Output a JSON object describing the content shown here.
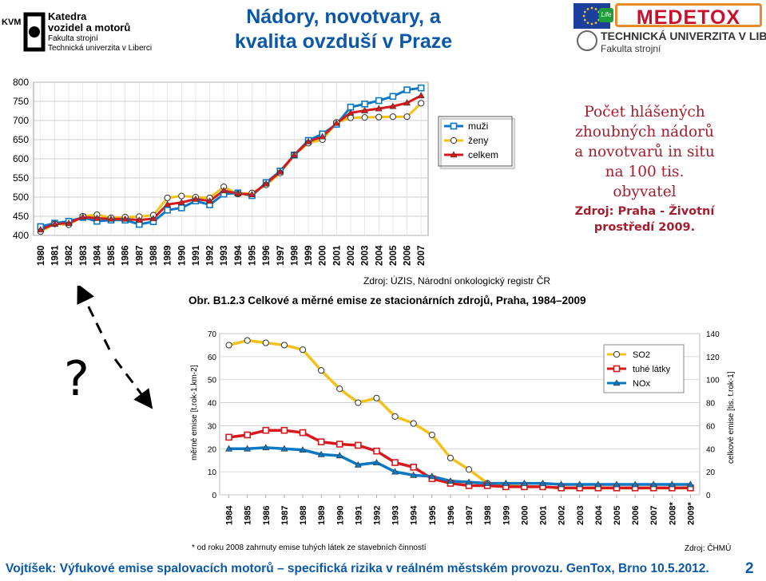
{
  "header": {
    "logo_left": {
      "abbr": "KVM",
      "line1": "Katedra",
      "line2": "vozidel a motorů",
      "line3": "Fakulta strojní",
      "line4": "Technická univerzita v Liberci"
    },
    "title_line1": "Nádory, novotvary, a",
    "title_line2": "kvalita ovzduší v Praze",
    "logo_right": {
      "brand": "MEDETOX",
      "life": "Life",
      "uni": "TECHNICKÁ UNIVERZITA V LIBERCI",
      "faculty": "Fakulta strojní"
    }
  },
  "chart1_caption": {
    "line1": "Počet hlášených",
    "line2": "zhoubných nádorů",
    "line3": "a novotvarů in situ",
    "line4": "na 100 tis.",
    "line5": "obyvatel",
    "source_line1": "Zdroj: Praha - Životní",
    "source_line2": "prostředí 2009.",
    "source_bottom": "Zdroj: ÚZIS, Národní onkologický registr ČR"
  },
  "chart2_caption": {
    "title": "Obr. B1.2.3  Celkové a měrné emise ze stacionárních zdrojů, Praha, 1984–2009",
    "footnote": "* od roku 2008 zahrnuty emise tuhých látek ze stavebních činností",
    "source": "Zdroj: ČHMÚ"
  },
  "question_mark": "?",
  "footer": {
    "text": "Vojtíšek: Výfukové emise spalovacích motorů – specifická rizika v reálném městském provozu. GenTox, Brno 10.5.2012.",
    "page": "2"
  },
  "colors": {
    "blue": "#0a78c2",
    "yellow": "#f3c11a",
    "red": "#d7191c",
    "title_blue": "#0b57a8",
    "caption_red": "#a51d2d"
  },
  "chart_data": [
    {
      "type": "line",
      "categories": [
        "1980",
        "1981",
        "1982",
        "1983",
        "1984",
        "1985",
        "1986",
        "1987",
        "1988",
        "1989",
        "1990",
        "1991",
        "1992",
        "1993",
        "1994",
        "1995",
        "1996",
        "1997",
        "1998",
        "1999",
        "2000",
        "2001",
        "2002",
        "2003",
        "2004",
        "2005",
        "2006",
        "2007"
      ],
      "ylim": [
        400,
        800
      ],
      "yticks": [
        400,
        450,
        500,
        550,
        600,
        650,
        700,
        750,
        800
      ],
      "series": [
        {
          "name": "muži",
          "color": "#0a78c2",
          "marker": "square",
          "values": [
            423,
            432,
            437,
            447,
            437,
            440,
            440,
            429,
            436,
            466,
            472,
            490,
            480,
            508,
            511,
            504,
            538,
            568,
            610,
            648,
            665,
            690,
            735,
            743,
            752,
            763,
            780,
            785
          ]
        },
        {
          "name": "ženy",
          "color": "#f3c11a",
          "marker": "circle",
          "values": [
            410,
            430,
            428,
            450,
            454,
            446,
            448,
            449,
            453,
            498,
            503,
            500,
            498,
            527,
            508,
            511,
            532,
            563,
            610,
            641,
            650,
            695,
            707,
            708,
            709,
            710,
            710,
            745
          ]
        },
        {
          "name": "celkem",
          "color": "#d7191c",
          "marker": "triangle",
          "values": [
            415,
            430,
            432,
            448,
            445,
            443,
            443,
            440,
            444,
            481,
            486,
            495,
            490,
            517,
            509,
            507,
            535,
            566,
            610,
            645,
            658,
            693,
            720,
            726,
            731,
            737,
            746,
            765
          ]
        }
      ]
    },
    {
      "type": "line",
      "title": "Obr. B1.2.3  Celkové a měrné emise ze stacionárních zdrojů, Praha, 1984–2009",
      "ylabel": "měrné emise [t.rok-1.km-2]",
      "y2label": "celkové emise [tis. t.rok-1]",
      "categories": [
        "1984",
        "1985",
        "1986",
        "1987",
        "1988",
        "1989",
        "1990",
        "1991",
        "1992",
        "1993",
        "1994",
        "1995",
        "1996",
        "1997",
        "1998",
        "1999",
        "2000",
        "2001",
        "2002",
        "2003",
        "2004",
        "2005",
        "2006",
        "2007",
        "2008*",
        "2009*"
      ],
      "ylim": [
        0,
        70
      ],
      "yticks": [
        0,
        10,
        20,
        30,
        40,
        50,
        60,
        70
      ],
      "y2lim": [
        0,
        140
      ],
      "y2ticks": [
        0,
        20,
        40,
        60,
        80,
        100,
        120,
        140
      ],
      "series": [
        {
          "name": "SO2",
          "color": "#f3c11a",
          "marker": "circle",
          "values": [
            65,
            67,
            66,
            65,
            63,
            54,
            46,
            40,
            42,
            34,
            31,
            26,
            16,
            11,
            5,
            4,
            3.5,
            3.5,
            3,
            3,
            3,
            3,
            3,
            3,
            3,
            3
          ]
        },
        {
          "name": "tuhé látky",
          "color": "#d7191c",
          "marker": "square",
          "values": [
            25,
            26,
            28,
            28,
            27,
            23,
            22,
            21.5,
            19,
            14,
            12,
            7,
            5,
            4,
            4,
            3.5,
            3.5,
            3.5,
            3,
            3,
            3,
            3,
            3,
            3,
            3,
            3
          ]
        },
        {
          "name": "NOx",
          "color": "#0a78c2",
          "marker": "triangle",
          "values": [
            20,
            20,
            20.5,
            20,
            19.5,
            17.5,
            17,
            13,
            14,
            10,
            8.5,
            8,
            6,
            5.5,
            5,
            5,
            5,
            5,
            4.5,
            4.5,
            4.5,
            4.5,
            4.5,
            4.5,
            4.5,
            4.5
          ]
        }
      ]
    }
  ]
}
